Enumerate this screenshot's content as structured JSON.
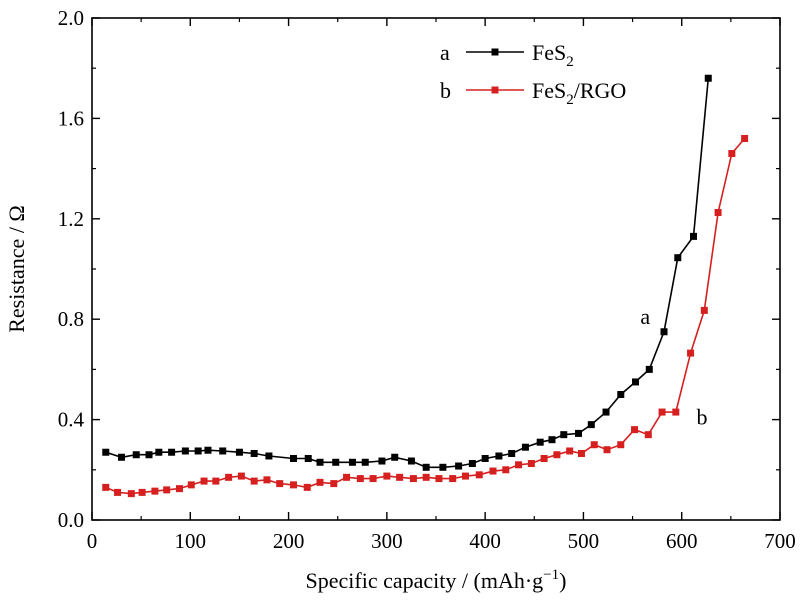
{
  "chart_data": {
    "type": "line",
    "xlabel": "Specific capacity / (mAh·g",
    "xlabel_sup": "−1",
    "xlabel_close": ")",
    "ylabel": "Resistance / Ω",
    "xlim": [
      0,
      700
    ],
    "ylim": [
      0.0,
      2.0
    ],
    "x_ticks": [
      0,
      100,
      200,
      300,
      400,
      500,
      600,
      700
    ],
    "y_ticks": [
      0.0,
      0.4,
      0.8,
      1.2,
      1.6,
      2.0
    ],
    "y_tick_labels": [
      "0.0",
      "0.4",
      "0.8",
      "1.2",
      "1.6",
      "2.0"
    ],
    "grid": false,
    "legend_position": "top-right",
    "series": [
      {
        "id": "a",
        "legend_key": "a",
        "name_main": "FeS",
        "name_sub": "2",
        "name_tail": "",
        "color": "#000000",
        "marker": "square",
        "points": [
          [
            14,
            0.27
          ],
          [
            30,
            0.25
          ],
          [
            45,
            0.26
          ],
          [
            58,
            0.26
          ],
          [
            68,
            0.27
          ],
          [
            81,
            0.27
          ],
          [
            95,
            0.275
          ],
          [
            108,
            0.275
          ],
          [
            118,
            0.278
          ],
          [
            133,
            0.275
          ],
          [
            150,
            0.27
          ],
          [
            165,
            0.265
          ],
          [
            180,
            0.255
          ],
          [
            205,
            0.245
          ],
          [
            220,
            0.245
          ],
          [
            232,
            0.23
          ],
          [
            248,
            0.23
          ],
          [
            265,
            0.23
          ],
          [
            278,
            0.23
          ],
          [
            295,
            0.235
          ],
          [
            308,
            0.25
          ],
          [
            325,
            0.235
          ],
          [
            340,
            0.21
          ],
          [
            357,
            0.21
          ],
          [
            373,
            0.215
          ],
          [
            387,
            0.225
          ],
          [
            400,
            0.245
          ],
          [
            414,
            0.255
          ],
          [
            427,
            0.265
          ],
          [
            441,
            0.29
          ],
          [
            456,
            0.31
          ],
          [
            468,
            0.32
          ],
          [
            480,
            0.34
          ],
          [
            495,
            0.345
          ],
          [
            508,
            0.38
          ],
          [
            523,
            0.43
          ],
          [
            538,
            0.5
          ],
          [
            553,
            0.55
          ],
          [
            567,
            0.6
          ],
          [
            582,
            0.75
          ],
          [
            596,
            1.045
          ],
          [
            612,
            1.13
          ],
          [
            627,
            1.76
          ]
        ]
      },
      {
        "id": "b",
        "legend_key": "b",
        "name_main": "FeS",
        "name_sub": "2",
        "name_tail": "/RGO",
        "color": "#d62020",
        "marker": "square",
        "points": [
          [
            14,
            0.13
          ],
          [
            26,
            0.11
          ],
          [
            40,
            0.105
          ],
          [
            51,
            0.11
          ],
          [
            64,
            0.115
          ],
          [
            76,
            0.12
          ],
          [
            89,
            0.125
          ],
          [
            101,
            0.14
          ],
          [
            114,
            0.155
          ],
          [
            126,
            0.155
          ],
          [
            139,
            0.17
          ],
          [
            152,
            0.175
          ],
          [
            165,
            0.155
          ],
          [
            178,
            0.16
          ],
          [
            191,
            0.145
          ],
          [
            205,
            0.14
          ],
          [
            219,
            0.13
          ],
          [
            232,
            0.15
          ],
          [
            246,
            0.145
          ],
          [
            259,
            0.17
          ],
          [
            273,
            0.165
          ],
          [
            286,
            0.165
          ],
          [
            300,
            0.175
          ],
          [
            313,
            0.17
          ],
          [
            327,
            0.165
          ],
          [
            340,
            0.17
          ],
          [
            353,
            0.165
          ],
          [
            367,
            0.165
          ],
          [
            380,
            0.175
          ],
          [
            394,
            0.18
          ],
          [
            408,
            0.195
          ],
          [
            421,
            0.2
          ],
          [
            434,
            0.22
          ],
          [
            447,
            0.225
          ],
          [
            460,
            0.245
          ],
          [
            473,
            0.26
          ],
          [
            486,
            0.275
          ],
          [
            498,
            0.265
          ],
          [
            511,
            0.3
          ],
          [
            524,
            0.28
          ],
          [
            538,
            0.3
          ],
          [
            552,
            0.36
          ],
          [
            566,
            0.34
          ],
          [
            580,
            0.43
          ],
          [
            594,
            0.43
          ],
          [
            609,
            0.665
          ],
          [
            623,
            0.835
          ],
          [
            637,
            1.225
          ],
          [
            651,
            1.46
          ],
          [
            664,
            1.52
          ]
        ]
      }
    ],
    "annotations": [
      {
        "text": "a",
        "x": 558,
        "y": 0.78
      },
      {
        "text": "b",
        "x": 615,
        "y": 0.38
      }
    ]
  }
}
